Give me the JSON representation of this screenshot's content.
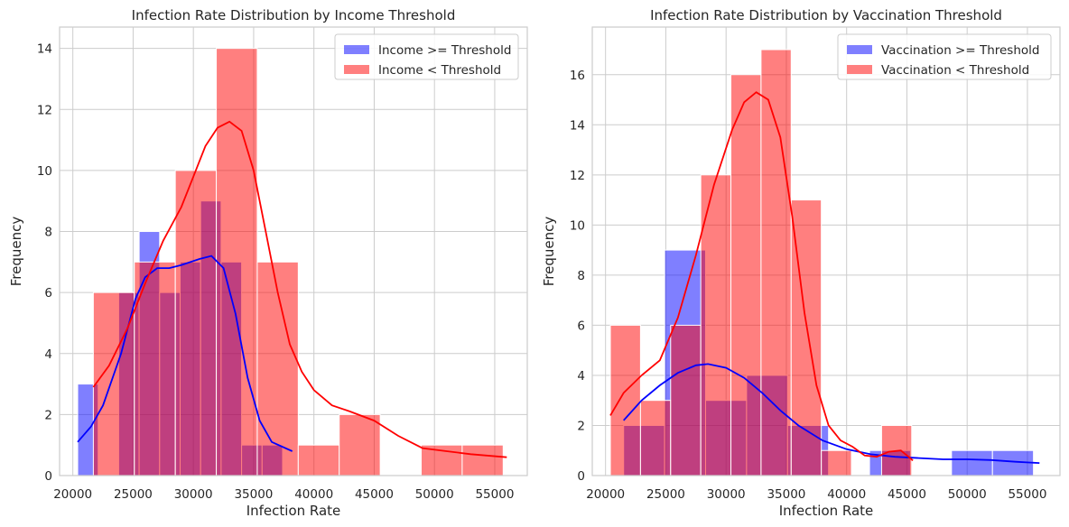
{
  "chart_data": [
    {
      "type": "bar",
      "title": "Infection Rate Distribution by Income Threshold",
      "xlabel": "Infection Rate",
      "ylabel": "Frequency",
      "xlim": [
        18900,
        57700
      ],
      "ylim": [
        0,
        14.7
      ],
      "xticks": [
        20000,
        25000,
        30000,
        35000,
        40000,
        45000,
        50000,
        55000
      ],
      "yticks": [
        0,
        2,
        4,
        6,
        8,
        10,
        12,
        14
      ],
      "grid": true,
      "legend_position": "top-right",
      "series": [
        {
          "name": "Income >= Threshold",
          "color": "#0000ff",
          "bins": [
            {
              "x0": 20400,
              "x1": 22100,
              "count": 3
            },
            {
              "x0": 22100,
              "x1": 23800,
              "count": 0
            },
            {
              "x0": 23800,
              "x1": 25500,
              "count": 6
            },
            {
              "x0": 25500,
              "x1": 27200,
              "count": 8
            },
            {
              "x0": 27200,
              "x1": 28900,
              "count": 6
            },
            {
              "x0": 28900,
              "x1": 30600,
              "count": 7
            },
            {
              "x0": 30600,
              "x1": 32300,
              "count": 9
            },
            {
              "x0": 32300,
              "x1": 34000,
              "count": 7
            },
            {
              "x0": 34000,
              "x1": 35700,
              "count": 1
            },
            {
              "x0": 35700,
              "x1": 37400,
              "count": 1
            }
          ],
          "kde": [
            [
              20400,
              1.1
            ],
            [
              21500,
              1.6
            ],
            [
              22500,
              2.3
            ],
            [
              24000,
              4.0
            ],
            [
              25200,
              5.8
            ],
            [
              26000,
              6.5
            ],
            [
              27000,
              6.8
            ],
            [
              28000,
              6.8
            ],
            [
              29000,
              6.9
            ],
            [
              30500,
              7.1
            ],
            [
              31500,
              7.2
            ],
            [
              32500,
              6.8
            ],
            [
              33500,
              5.3
            ],
            [
              34500,
              3.2
            ],
            [
              35500,
              1.8
            ],
            [
              36500,
              1.1
            ],
            [
              38200,
              0.8
            ]
          ]
        },
        {
          "name": "Income < Threshold",
          "color": "#ff0000",
          "bins": [
            {
              "x0": 21700,
              "x1": 25100,
              "count": 6
            },
            {
              "x0": 25100,
              "x1": 28500,
              "count": 7
            },
            {
              "x0": 28500,
              "x1": 31900,
              "count": 10
            },
            {
              "x0": 31900,
              "x1": 35300,
              "count": 14
            },
            {
              "x0": 35300,
              "x1": 38700,
              "count": 7
            },
            {
              "x0": 38700,
              "x1": 42100,
              "count": 1
            },
            {
              "x0": 42100,
              "x1": 45500,
              "count": 2
            },
            {
              "x0": 45500,
              "x1": 48900,
              "count": 0
            },
            {
              "x0": 48900,
              "x1": 52300,
              "count": 1
            },
            {
              "x0": 52300,
              "x1": 55700,
              "count": 1
            }
          ],
          "kde": [
            [
              21700,
              2.9
            ],
            [
              23000,
              3.6
            ],
            [
              24500,
              4.8
            ],
            [
              26000,
              6.3
            ],
            [
              27500,
              7.7
            ],
            [
              29000,
              8.8
            ],
            [
              30000,
              9.8
            ],
            [
              31000,
              10.8
            ],
            [
              32000,
              11.4
            ],
            [
              33000,
              11.6
            ],
            [
              34000,
              11.3
            ],
            [
              35000,
              10.0
            ],
            [
              36000,
              8.0
            ],
            [
              37000,
              6.0
            ],
            [
              38000,
              4.3
            ],
            [
              39000,
              3.4
            ],
            [
              40000,
              2.8
            ],
            [
              41500,
              2.3
            ],
            [
              43000,
              2.1
            ],
            [
              45000,
              1.8
            ],
            [
              47000,
              1.3
            ],
            [
              49000,
              0.9
            ],
            [
              51000,
              0.8
            ],
            [
              53000,
              0.7
            ],
            [
              56000,
              0.6
            ]
          ]
        }
      ]
    },
    {
      "type": "bar",
      "title": "Infection Rate Distribution by Vaccination Threshold",
      "xlabel": "Infection Rate",
      "ylabel": "Frequency",
      "xlim": [
        18900,
        57700
      ],
      "ylim": [
        0,
        17.9
      ],
      "xticks": [
        20000,
        25000,
        30000,
        35000,
        40000,
        45000,
        50000,
        55000
      ],
      "yticks": [
        0,
        2,
        4,
        6,
        8,
        10,
        12,
        14,
        16
      ],
      "grid": true,
      "legend_position": "top-right",
      "series": [
        {
          "name": "Vaccination >= Threshold",
          "color": "#0000ff",
          "bins": [
            {
              "x0": 21500,
              "x1": 24900,
              "count": 2
            },
            {
              "x0": 24900,
              "x1": 28300,
              "count": 9
            },
            {
              "x0": 28300,
              "x1": 31700,
              "count": 3
            },
            {
              "x0": 31700,
              "x1": 35100,
              "count": 4
            },
            {
              "x0": 35100,
              "x1": 38500,
              "count": 2
            },
            {
              "x0": 38500,
              "x1": 41900,
              "count": 0
            },
            {
              "x0": 41900,
              "x1": 45300,
              "count": 1
            },
            {
              "x0": 45300,
              "x1": 48700,
              "count": 0
            },
            {
              "x0": 48700,
              "x1": 52100,
              "count": 1
            },
            {
              "x0": 52100,
              "x1": 55500,
              "count": 1
            }
          ],
          "kde": [
            [
              21500,
              2.2
            ],
            [
              23000,
              3.0
            ],
            [
              24500,
              3.6
            ],
            [
              26000,
              4.1
            ],
            [
              27500,
              4.4
            ],
            [
              28500,
              4.45
            ],
            [
              30000,
              4.3
            ],
            [
              31500,
              3.9
            ],
            [
              33000,
              3.3
            ],
            [
              34500,
              2.6
            ],
            [
              36000,
              2.0
            ],
            [
              38000,
              1.4
            ],
            [
              40000,
              1.05
            ],
            [
              42000,
              0.85
            ],
            [
              44000,
              0.75
            ],
            [
              46000,
              0.7
            ],
            [
              48000,
              0.65
            ],
            [
              50000,
              0.65
            ],
            [
              52000,
              0.62
            ],
            [
              54000,
              0.55
            ],
            [
              56000,
              0.5
            ]
          ]
        },
        {
          "name": "Vaccination < Threshold",
          "color": "#ff0000",
          "bins": [
            {
              "x0": 20400,
              "x1": 22900,
              "count": 6
            },
            {
              "x0": 22900,
              "x1": 25400,
              "count": 3
            },
            {
              "x0": 25400,
              "x1": 27900,
              "count": 6
            },
            {
              "x0": 27900,
              "x1": 30400,
              "count": 12
            },
            {
              "x0": 30400,
              "x1": 32900,
              "count": 16
            },
            {
              "x0": 32900,
              "x1": 35400,
              "count": 17
            },
            {
              "x0": 35400,
              "x1": 37900,
              "count": 11
            },
            {
              "x0": 37900,
              "x1": 40400,
              "count": 1
            },
            {
              "x0": 40400,
              "x1": 42900,
              "count": 0
            },
            {
              "x0": 42900,
              "x1": 45400,
              "count": 2
            }
          ],
          "kde": [
            [
              20400,
              2.4
            ],
            [
              21500,
              3.3
            ],
            [
              23000,
              4.0
            ],
            [
              24500,
              4.6
            ],
            [
              26000,
              6.3
            ],
            [
              27500,
              8.8
            ],
            [
              29000,
              11.6
            ],
            [
              30500,
              13.8
            ],
            [
              31500,
              14.9
            ],
            [
              32500,
              15.3
            ],
            [
              33500,
              15.0
            ],
            [
              34500,
              13.5
            ],
            [
              35500,
              10.3
            ],
            [
              36500,
              6.5
            ],
            [
              37500,
              3.6
            ],
            [
              38500,
              2.0
            ],
            [
              39500,
              1.4
            ],
            [
              40500,
              1.15
            ],
            [
              41500,
              0.8
            ],
            [
              42500,
              0.75
            ],
            [
              43500,
              0.95
            ],
            [
              44500,
              1.0
            ],
            [
              45500,
              0.6
            ]
          ]
        }
      ]
    }
  ]
}
